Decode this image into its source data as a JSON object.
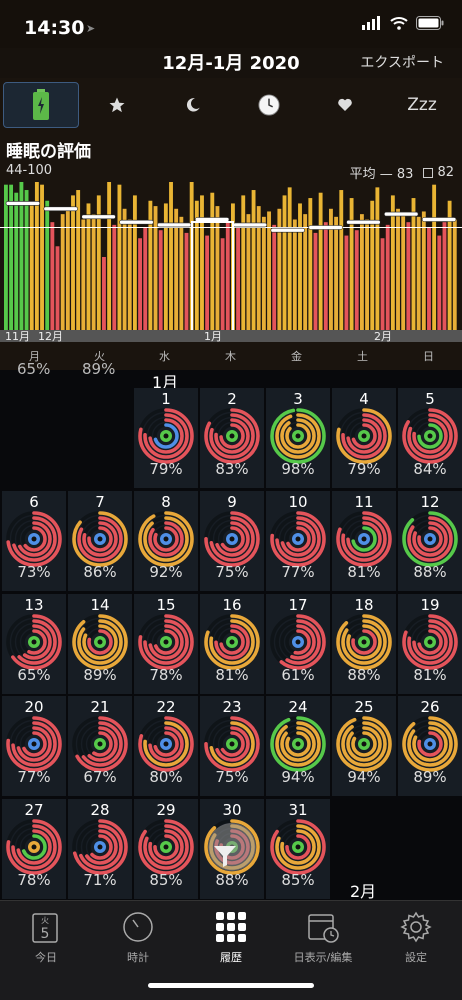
{
  "status": {
    "time": "14:30"
  },
  "header": {
    "title": "12月-1月 2020",
    "export": "エクスポート"
  },
  "tabs": [
    {
      "name": "battery-tab-icon"
    },
    {
      "name": "star-tab-icon"
    },
    {
      "name": "moon-tab-icon"
    },
    {
      "name": "clock-tab-icon"
    },
    {
      "name": "heart-tab-icon"
    },
    {
      "name": "zzz-tab",
      "text": "Zzz"
    }
  ],
  "chart_section": {
    "title": "睡眠の評価",
    "range": "44-100",
    "avg_label": "平均 — 83",
    "box_label": "82",
    "month_labels": [
      "11月",
      "12月",
      "1月",
      "2月"
    ],
    "weekdays": [
      "月",
      "火",
      "水",
      "木",
      "金",
      "土",
      "日"
    ]
  },
  "chart_data": {
    "type": "bar",
    "ylim": [
      44,
      100
    ],
    "average": 83,
    "values": [
      99,
      99,
      96,
      100,
      97,
      92,
      100,
      99,
      93,
      85,
      76,
      88,
      90,
      95,
      97,
      86,
      92,
      88,
      95,
      72,
      100,
      84,
      99,
      90,
      86,
      95,
      79,
      83,
      93,
      91,
      82,
      92,
      100,
      90,
      87,
      81,
      100,
      93,
      95,
      80,
      96,
      91,
      79,
      85,
      92,
      83,
      95,
      88,
      97,
      91,
      87,
      89,
      84,
      90,
      95,
      98,
      86,
      92,
      88,
      94,
      81,
      96,
      85,
      90,
      87,
      97,
      80,
      94,
      82,
      88,
      86,
      93,
      98,
      79,
      84,
      95,
      90,
      88,
      85,
      94,
      87,
      89,
      83,
      99,
      80,
      85,
      93,
      86
    ],
    "weekly_averages": [
      92,
      90,
      87,
      85,
      84,
      86,
      84,
      82,
      83,
      85,
      88,
      86
    ]
  },
  "calendar": {
    "month_label": "1月",
    "next_month_label": "2月",
    "partial_row": [
      "65%",
      "89%"
    ],
    "days": [
      {
        "day": "1",
        "pct": "79%"
      },
      {
        "day": "2",
        "pct": "83%"
      },
      {
        "day": "3",
        "pct": "98%"
      },
      {
        "day": "4",
        "pct": "79%"
      },
      {
        "day": "5",
        "pct": "84%"
      },
      {
        "day": "6",
        "pct": "73%"
      },
      {
        "day": "7",
        "pct": "86%"
      },
      {
        "day": "8",
        "pct": "92%"
      },
      {
        "day": "9",
        "pct": "75%"
      },
      {
        "day": "10",
        "pct": "77%"
      },
      {
        "day": "11",
        "pct": "81%"
      },
      {
        "day": "12",
        "pct": "88%"
      },
      {
        "day": "13",
        "pct": "65%"
      },
      {
        "day": "14",
        "pct": "89%"
      },
      {
        "day": "15",
        "pct": "78%"
      },
      {
        "day": "16",
        "pct": "81%"
      },
      {
        "day": "17",
        "pct": "61%"
      },
      {
        "day": "18",
        "pct": "88%"
      },
      {
        "day": "19",
        "pct": "81%"
      },
      {
        "day": "20",
        "pct": "77%"
      },
      {
        "day": "21",
        "pct": "67%"
      },
      {
        "day": "22",
        "pct": "80%"
      },
      {
        "day": "23",
        "pct": "75%"
      },
      {
        "day": "24",
        "pct": "94%"
      },
      {
        "day": "25",
        "pct": "94%"
      },
      {
        "day": "26",
        "pct": "89%"
      },
      {
        "day": "27",
        "pct": "78%"
      },
      {
        "day": "28",
        "pct": "71%"
      },
      {
        "day": "29",
        "pct": "85%"
      },
      {
        "day": "30",
        "pct": "88%"
      },
      {
        "day": "31",
        "pct": "85%"
      }
    ]
  },
  "tabbar": {
    "today_label": "今日",
    "today_weekday": "火",
    "today_day": "5",
    "clock_label": "時計",
    "history_label": "履歴",
    "daily_label": "日表示/編集",
    "settings_label": "設定"
  },
  "colors": {
    "red": "#e4545b",
    "orange": "#e8a83a",
    "green": "#56c94a",
    "blue": "#4f8fe6",
    "yellow": "#e9b534"
  }
}
